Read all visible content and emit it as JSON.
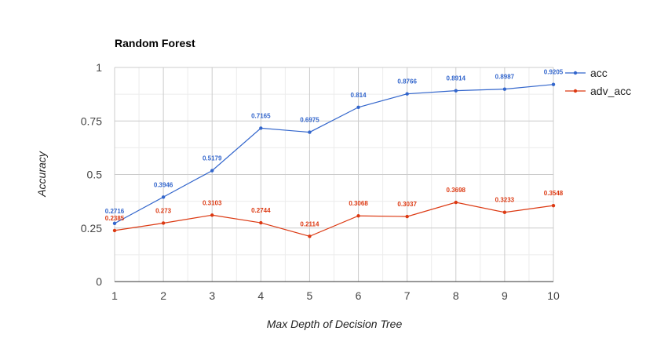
{
  "chart_data": {
    "type": "line",
    "title": "Random Forest",
    "xlabel": "Max Depth of Decision Tree",
    "ylabel": "Accuracy",
    "x": [
      1,
      2,
      3,
      4,
      5,
      6,
      7,
      8,
      9,
      10
    ],
    "xlim": [
      1,
      10
    ],
    "ylim": [
      0,
      1
    ],
    "yticks": [
      0,
      0.25,
      0.5,
      0.75,
      1
    ],
    "ytick_labels": [
      "0",
      "0.25",
      "0.5",
      "0.75",
      "1"
    ],
    "xtick_labels": [
      "1",
      "2",
      "3",
      "4",
      "5",
      "6",
      "7",
      "8",
      "9",
      "10"
    ],
    "grid": true,
    "legend_position": "right",
    "series": [
      {
        "name": "acc",
        "color": "#3366cc",
        "values": [
          0.2716,
          0.3946,
          0.5179,
          0.7165,
          0.6975,
          0.814,
          0.8766,
          0.8914,
          0.8987,
          0.9205
        ],
        "labels": [
          "0.2716",
          "0.3946",
          "0.5179",
          "0.7165",
          "0.6975",
          "0.814",
          "0.8766",
          "0.8914",
          "0.8987",
          "0.9205"
        ]
      },
      {
        "name": "adv_acc",
        "color": "#dc3912",
        "values": [
          0.2385,
          0.273,
          0.3103,
          0.2744,
          0.2114,
          0.3068,
          0.3037,
          0.3698,
          0.3233,
          0.3548
        ],
        "labels": [
          "0.2385",
          "0.273",
          "0.3103",
          "0.2744",
          "0.2114",
          "0.3068",
          "0.3037",
          "0.3698",
          "0.3233",
          "0.3548"
        ]
      }
    ]
  }
}
